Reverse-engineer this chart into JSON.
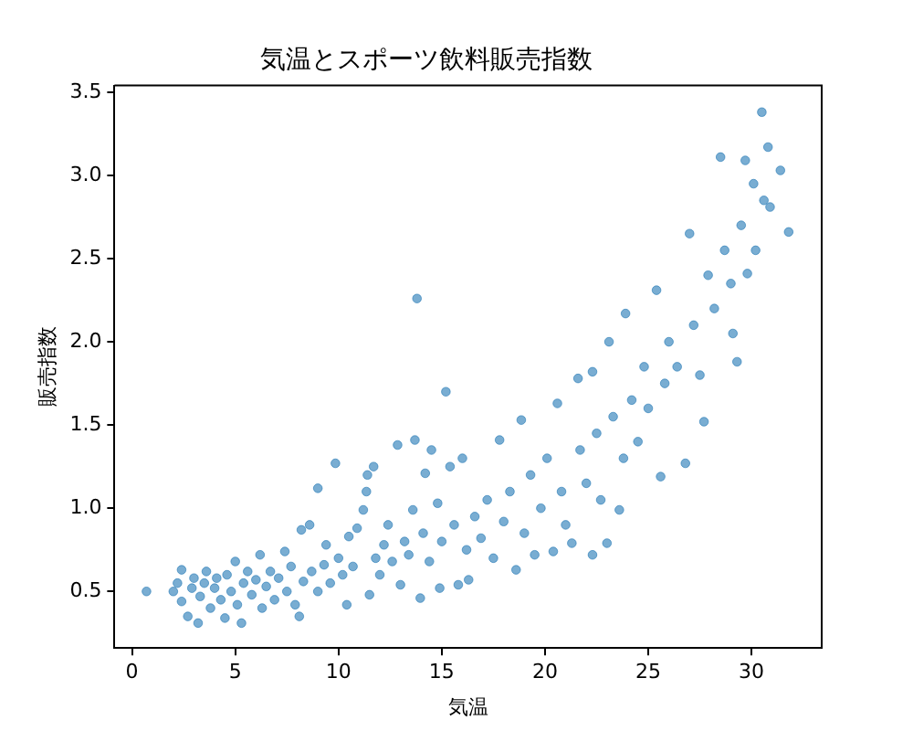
{
  "chart_data": {
    "type": "scatter",
    "title": "気温とスポーツ飲料販売指数",
    "xlabel": "気温",
    "ylabel": "販売指数",
    "color": "#1f77b4",
    "marker": "circle",
    "xlim": [
      -0.85,
      33.4
    ],
    "ylim": [
      0.16,
      3.54
    ],
    "xticks": [
      0,
      5,
      10,
      15,
      20,
      25,
      30
    ],
    "yticks": [
      0.5,
      {
        "value": 1,
        "label": "1.0"
      },
      1.5,
      {
        "value": 2,
        "label": "2.0"
      },
      2.5,
      {
        "value": 3,
        "label": "3.0"
      },
      3.5
    ],
    "x": [
      0.7,
      2.0,
      2.2,
      2.4,
      2.4,
      2.7,
      2.9,
      3.0,
      3.2,
      3.3,
      3.5,
      3.6,
      3.8,
      4.0,
      4.1,
      4.3,
      4.5,
      4.6,
      4.8,
      5.0,
      5.1,
      5.3,
      5.4,
      5.6,
      5.8,
      6.0,
      6.2,
      6.3,
      6.5,
      6.7,
      6.9,
      7.1,
      7.4,
      7.5,
      7.7,
      7.9,
      8.1,
      8.2,
      8.3,
      8.6,
      8.7,
      9.0,
      9.0,
      9.3,
      9.4,
      9.6,
      9.85,
      10.0,
      10.2,
      10.4,
      10.5,
      10.7,
      10.9,
      11.2,
      11.35,
      11.4,
      11.5,
      11.7,
      11.8,
      12.0,
      12.2,
      12.4,
      12.6,
      12.86,
      13.0,
      13.2,
      13.4,
      13.6,
      13.7,
      13.8,
      13.96,
      14.1,
      14.2,
      14.4,
      14.5,
      14.8,
      14.9,
      15.0,
      15.2,
      15.4,
      15.6,
      15.8,
      16.0,
      16.2,
      16.3,
      16.6,
      16.9,
      17.2,
      17.5,
      17.8,
      18.0,
      18.3,
      18.6,
      18.85,
      19.0,
      19.3,
      19.5,
      19.8,
      20.1,
      20.4,
      20.6,
      20.8,
      21.0,
      21.3,
      21.6,
      21.7,
      22.0,
      22.3,
      22.3,
      22.5,
      22.7,
      23.0,
      23.1,
      23.3,
      23.6,
      23.8,
      23.9,
      24.2,
      24.5,
      24.8,
      25.0,
      25.4,
      25.6,
      25.8,
      26.0,
      26.4,
      26.8,
      27.0,
      27.2,
      27.5,
      27.7,
      27.9,
      28.2,
      28.5,
      28.7,
      29.0,
      29.1,
      29.3,
      29.5,
      29.7,
      29.8,
      30.1,
      30.2,
      30.5,
      30.6,
      30.8,
      30.9,
      31.4,
      31.8
    ],
    "values": [
      0.5,
      0.5,
      0.55,
      0.63,
      0.44,
      0.35,
      0.52,
      0.58,
      0.31,
      0.47,
      0.55,
      0.62,
      0.4,
      0.52,
      0.58,
      0.45,
      0.34,
      0.6,
      0.5,
      0.68,
      0.42,
      0.31,
      0.55,
      0.62,
      0.48,
      0.57,
      0.72,
      0.4,
      0.53,
      0.62,
      0.45,
      0.58,
      0.74,
      0.5,
      0.65,
      0.42,
      0.35,
      0.87,
      0.56,
      0.9,
      0.62,
      1.12,
      0.5,
      0.66,
      0.78,
      0.55,
      1.27,
      0.7,
      0.6,
      0.42,
      0.83,
      0.65,
      0.88,
      0.99,
      1.1,
      1.2,
      0.48,
      1.25,
      0.7,
      0.6,
      0.78,
      0.9,
      0.68,
      1.38,
      0.54,
      0.8,
      0.72,
      0.99,
      1.41,
      2.26,
      0.46,
      0.85,
      1.21,
      0.68,
      1.35,
      1.03,
      0.52,
      0.8,
      1.7,
      1.25,
      0.9,
      0.54,
      1.3,
      0.75,
      0.57,
      0.95,
      0.82,
      1.05,
      0.7,
      1.41,
      0.92,
      1.1,
      0.63,
      1.53,
      0.85,
      1.2,
      0.72,
      1.0,
      1.3,
      0.74,
      1.63,
      1.1,
      0.9,
      0.79,
      1.78,
      1.35,
      1.15,
      1.82,
      0.72,
      1.45,
      1.05,
      0.79,
      2.0,
      1.55,
      0.99,
      1.3,
      2.17,
      1.65,
      1.4,
      1.85,
      1.6,
      2.31,
      1.19,
      1.75,
      2.0,
      1.85,
      1.27,
      2.65,
      2.1,
      1.8,
      1.52,
      2.4,
      2.2,
      3.11,
      2.55,
      2.35,
      2.05,
      1.88,
      2.7,
      3.09,
      2.41,
      2.95,
      2.55,
      3.38,
      2.85,
      3.17,
      2.81,
      3.03,
      2.66
    ]
  }
}
